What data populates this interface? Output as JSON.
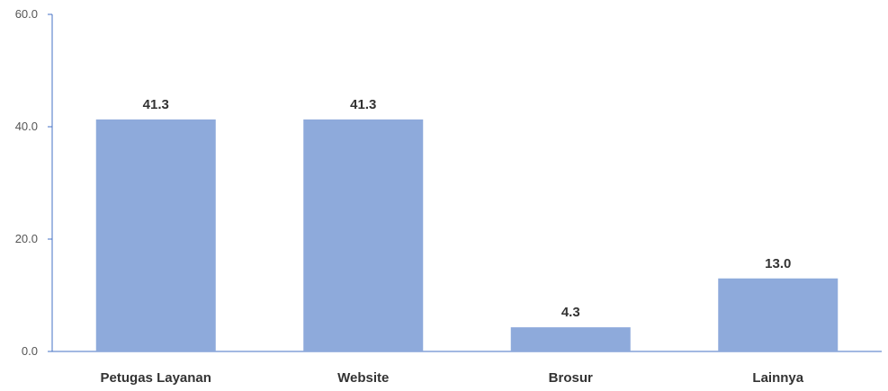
{
  "chart_data": {
    "type": "bar",
    "categories": [
      "Petugas Layanan",
      "Website",
      "Brosur",
      "Lainnya"
    ],
    "values": [
      41.3,
      41.3,
      4.3,
      13.0
    ],
    "value_labels": [
      "41.3",
      "41.3",
      "4.3",
      "13.0"
    ],
    "yticks": [
      "0.0",
      "20.0",
      "40.0",
      "60.0"
    ],
    "ylim": [
      0,
      60
    ],
    "grid": false,
    "colors": {
      "bar": "#8eaadb",
      "axis": "#4472c4"
    }
  }
}
